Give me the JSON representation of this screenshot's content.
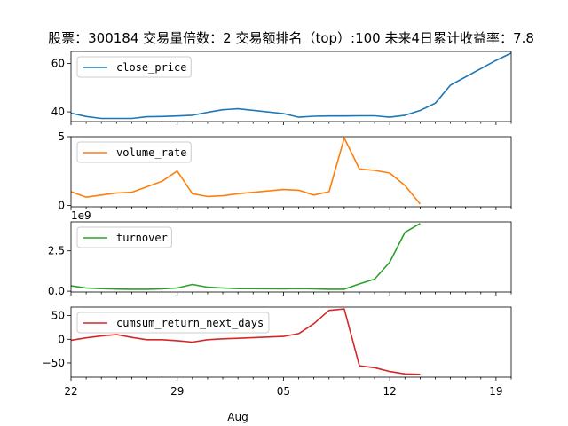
{
  "chart_data": {
    "type": "line",
    "title": "股票：300184  交易量倍数：2 交易额排名（top）:100 未来4日累计收益率：7.8",
    "x": [
      "Jul 22",
      "Jul 23",
      "Jul 24",
      "Jul 25",
      "Jul 26",
      "Jul 27",
      "Jul 28",
      "Jul 29",
      "Jul 30",
      "Jul 31",
      "Aug 01",
      "Aug 02",
      "Aug 03",
      "Aug 04",
      "Aug 05",
      "Aug 06",
      "Aug 07",
      "Aug 08",
      "Aug 09",
      "Aug 10",
      "Aug 11",
      "Aug 12",
      "Aug 13",
      "Aug 14",
      "Aug 15",
      "Aug 16",
      "Aug 17",
      "Aug 18",
      "Aug 19",
      "Aug 20"
    ],
    "x_tick_labels": [
      "22",
      "29",
      "05",
      "12",
      "19"
    ],
    "x_tick_indices": [
      0,
      7,
      14,
      21,
      28
    ],
    "xlabel": "Aug",
    "series_dates": [
      0,
      1,
      2,
      3,
      4,
      5,
      6,
      7,
      8,
      9,
      10,
      11,
      12,
      13,
      14,
      15,
      16,
      17,
      18,
      19,
      20,
      21,
      22,
      23,
      24,
      25,
      26,
      27,
      28,
      29
    ],
    "panels": [
      {
        "name": "close_price",
        "color": "#1f77b4",
        "ylim": [
          36.0,
          65.0
        ],
        "yticks": [
          40,
          60
        ],
        "ytick_labels": [
          "40",
          "60"
        ],
        "offset_text": "",
        "values": [
          39.5,
          38.1,
          37.3,
          37.3,
          37.3,
          38.0,
          38.1,
          38.3,
          38.6,
          39.8,
          40.9,
          41.3,
          39.3,
          37.8,
          38.2,
          38.3,
          38.3,
          38.4,
          38.4,
          37.8,
          38.6,
          40.6,
          43.6,
          51.1,
          61.3,
          64.3
        ],
        "value_days": [
          0,
          1,
          2,
          3,
          4,
          5,
          6,
          7,
          8,
          9,
          10,
          11,
          14,
          15,
          16,
          17,
          18,
          19,
          20,
          21,
          22,
          23,
          24,
          25,
          28,
          29
        ]
      },
      {
        "name": "volume_rate",
        "color": "#ff7f0e",
        "ylim": [
          -0.1,
          5.0
        ],
        "yticks": [
          0,
          5
        ],
        "ytick_labels": [
          "0",
          "5"
        ],
        "offset_text": "",
        "values": [
          1.0,
          0.6,
          0.75,
          0.9,
          0.95,
          1.35,
          1.75,
          2.5,
          0.85,
          0.65,
          0.7,
          0.85,
          1.15,
          1.1,
          0.75,
          1.0,
          4.9,
          2.65,
          2.55,
          2.35,
          1.45,
          0.1
        ],
        "value_days": [
          0,
          1,
          2,
          3,
          4,
          5,
          6,
          7,
          8,
          9,
          10,
          11,
          14,
          15,
          16,
          17,
          18,
          19,
          20,
          21,
          22,
          23
        ]
      },
      {
        "name": "turnover",
        "color": "#2ca02c",
        "ylim": [
          -0.05,
          4.3
        ],
        "yticks": [
          0.0,
          2.5
        ],
        "ytick_labels": [
          "0.0",
          "2.5"
        ],
        "offset_text": "1e9",
        "values": [
          0.33,
          0.2,
          0.16,
          0.13,
          0.12,
          0.12,
          0.15,
          0.2,
          0.42,
          0.25,
          0.2,
          0.16,
          0.15,
          0.16,
          0.15,
          0.12,
          0.12,
          0.45,
          0.75,
          1.8,
          3.65,
          4.2
        ],
        "value_days": [
          0,
          1,
          2,
          3,
          4,
          5,
          6,
          7,
          8,
          9,
          10,
          11,
          14,
          15,
          16,
          17,
          18,
          19,
          20,
          21,
          22,
          23
        ]
      },
      {
        "name": "cumsum_return_next_days",
        "color": "#d62728",
        "ylim": [
          -80,
          68
        ],
        "yticks": [
          -50,
          0,
          50
        ],
        "ytick_labels": [
          "−50",
          "0",
          "50"
        ],
        "offset_text": "",
        "values": [
          -2,
          3,
          7,
          10,
          4,
          -1,
          -1,
          -3,
          -6,
          -1,
          1,
          2,
          6,
          12,
          33,
          61,
          64,
          -56,
          -60,
          -68,
          -73,
          -74
        ],
        "value_days": [
          0,
          1,
          2,
          3,
          4,
          5,
          6,
          7,
          8,
          9,
          10,
          11,
          14,
          15,
          16,
          17,
          18,
          19,
          20,
          21,
          22,
          23
        ]
      }
    ]
  }
}
